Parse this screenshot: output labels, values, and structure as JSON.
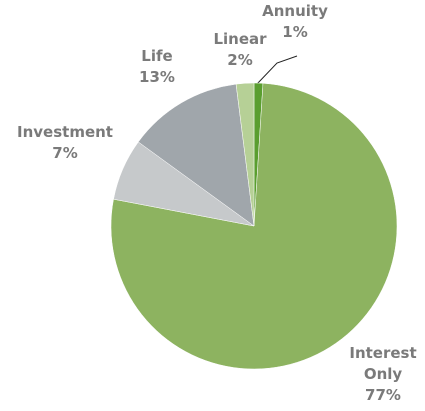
{
  "chart_data": {
    "type": "pie",
    "categories": [
      "Annuity",
      "Interest Only",
      "Investment",
      "Life",
      "Linear"
    ],
    "values": [
      1,
      77,
      7,
      13,
      2
    ],
    "value_labels": [
      "1%",
      "77%",
      "7%",
      "13%",
      "2%"
    ],
    "colors": [
      "#5a9e2f",
      "#8db360",
      "#c6c9cb",
      "#a0a6ab",
      "#b6d096"
    ]
  }
}
